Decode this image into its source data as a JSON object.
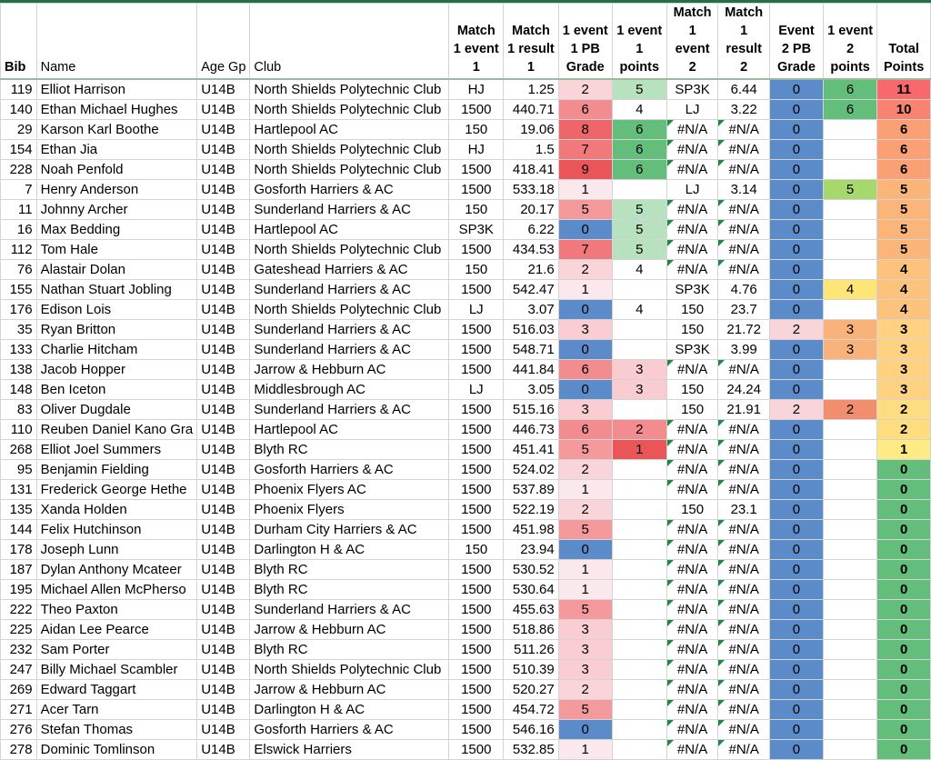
{
  "columns": [
    {
      "key": "bib",
      "label": "Bib"
    },
    {
      "key": "name",
      "label": "Name"
    },
    {
      "key": "age",
      "label": "Age Gp"
    },
    {
      "key": "club",
      "label": "Club"
    },
    {
      "key": "m1e",
      "label": "Match 1 event 1"
    },
    {
      "key": "m1r",
      "label": "Match 1 result 1"
    },
    {
      "key": "pb1",
      "label": "1 event 1 PB Grade"
    },
    {
      "key": "pts1",
      "label": "1 event 1 points"
    },
    {
      "key": "m2e",
      "label": "Match 1 event 2"
    },
    {
      "key": "m2r",
      "label": "Match 1 result 2"
    },
    {
      "key": "pb2",
      "label": "Event 2 PB Grade"
    },
    {
      "key": "pts2",
      "label": "1 event 2 points"
    },
    {
      "key": "total",
      "label": "Total Points"
    }
  ],
  "rows": [
    {
      "bib": "119",
      "name": "Elliot Harrison",
      "age": "U14B",
      "club": "North Shields Polytechnic Club",
      "m1e": "HJ",
      "m1r": "1.25",
      "pb1": "2",
      "pts1": "5",
      "m2e": "SP3K",
      "m2r": "6.44",
      "pb2": "0",
      "pts2": "6",
      "total": "11"
    },
    {
      "bib": "140",
      "name": "Ethan Michael Hughes",
      "age": "U14B",
      "club": "North Shields Polytechnic Club",
      "m1e": "1500",
      "m1r": "440.71",
      "pb1": "6",
      "pts1": "4",
      "m2e": "LJ",
      "m2r": "3.22",
      "pb2": "0",
      "pts2": "6",
      "total": "10"
    },
    {
      "bib": "29",
      "name": "Karson Karl Boothe",
      "age": "U14B",
      "club": "Hartlepool AC",
      "m1e": "150",
      "m1r": "19.06",
      "pb1": "8",
      "pts1": "6",
      "m2e": "#N/A",
      "m2r": "#N/A",
      "pb2": "0",
      "pts2": "",
      "total": "6"
    },
    {
      "bib": "154",
      "name": "Ethan Jia",
      "age": "U14B",
      "club": "North Shields Polytechnic Club",
      "m1e": "HJ",
      "m1r": "1.5",
      "pb1": "7",
      "pts1": "6",
      "m2e": "#N/A",
      "m2r": "#N/A",
      "pb2": "0",
      "pts2": "",
      "total": "6"
    },
    {
      "bib": "228",
      "name": "Noah Penfold",
      "age": "U14B",
      "club": "North Shields Polytechnic Club",
      "m1e": "1500",
      "m1r": "418.41",
      "pb1": "9",
      "pts1": "6",
      "m2e": "#N/A",
      "m2r": "#N/A",
      "pb2": "0",
      "pts2": "",
      "total": "6"
    },
    {
      "bib": "7",
      "name": "Henry Anderson",
      "age": "U14B",
      "club": "Gosforth Harriers & AC",
      "m1e": "1500",
      "m1r": "533.18",
      "pb1": "1",
      "pts1": "",
      "m2e": "LJ",
      "m2r": "3.14",
      "pb2": "0",
      "pts2": "5",
      "total": "5"
    },
    {
      "bib": "11",
      "name": "Johnny Archer",
      "age": "U14B",
      "club": "Sunderland Harriers & AC",
      "m1e": "150",
      "m1r": "20.17",
      "pb1": "5",
      "pts1": "5",
      "m2e": "#N/A",
      "m2r": "#N/A",
      "pb2": "0",
      "pts2": "",
      "total": "5"
    },
    {
      "bib": "16",
      "name": "Max Bedding",
      "age": "U14B",
      "club": "Hartlepool AC",
      "m1e": "SP3K",
      "m1r": "6.22",
      "pb1": "0",
      "pts1": "5",
      "m2e": "#N/A",
      "m2r": "#N/A",
      "pb2": "0",
      "pts2": "",
      "total": "5"
    },
    {
      "bib": "112",
      "name": "Tom Hale",
      "age": "U14B",
      "club": "North Shields Polytechnic Club",
      "m1e": "1500",
      "m1r": "434.53",
      "pb1": "7",
      "pts1": "5",
      "m2e": "#N/A",
      "m2r": "#N/A",
      "pb2": "0",
      "pts2": "",
      "total": "5"
    },
    {
      "bib": "76",
      "name": "Alastair Dolan",
      "age": "U14B",
      "club": "Gateshead Harriers & AC",
      "m1e": "150",
      "m1r": "21.6",
      "pb1": "2",
      "pts1": "4",
      "m2e": "#N/A",
      "m2r": "#N/A",
      "pb2": "0",
      "pts2": "",
      "total": "4"
    },
    {
      "bib": "155",
      "name": "Nathan Stuart Jobling",
      "age": "U14B",
      "club": "Sunderland Harriers & AC",
      "m1e": "1500",
      "m1r": "542.47",
      "pb1": "1",
      "pts1": "",
      "m2e": "SP3K",
      "m2r": "4.76",
      "pb2": "0",
      "pts2": "4",
      "total": "4"
    },
    {
      "bib": "176",
      "name": "Edison Lois",
      "age": "U14B",
      "club": "North Shields Polytechnic Club",
      "m1e": "LJ",
      "m1r": "3.07",
      "pb1": "0",
      "pts1": "4",
      "m2e": "150",
      "m2r": "23.7",
      "pb2": "0",
      "pts2": "",
      "total": "4"
    },
    {
      "bib": "35",
      "name": "Ryan Britton",
      "age": "U14B",
      "club": "Sunderland Harriers & AC",
      "m1e": "1500",
      "m1r": "516.03",
      "pb1": "3",
      "pts1": "",
      "m2e": "150",
      "m2r": "21.72",
      "pb2": "2",
      "pts2": "3",
      "total": "3"
    },
    {
      "bib": "133",
      "name": "Charlie Hitcham",
      "age": "U14B",
      "club": "Sunderland Harriers & AC",
      "m1e": "1500",
      "m1r": "548.71",
      "pb1": "0",
      "pts1": "",
      "m2e": "SP3K",
      "m2r": "3.99",
      "pb2": "0",
      "pts2": "3",
      "total": "3"
    },
    {
      "bib": "138",
      "name": "Jacob Hopper",
      "age": "U14B",
      "club": "Jarrow & Hebburn AC",
      "m1e": "1500",
      "m1r": "441.84",
      "pb1": "6",
      "pts1": "3",
      "m2e": "#N/A",
      "m2r": "#N/A",
      "pb2": "0",
      "pts2": "",
      "total": "3"
    },
    {
      "bib": "148",
      "name": "Ben Iceton",
      "age": "U14B",
      "club": "Middlesbrough AC",
      "m1e": "LJ",
      "m1r": "3.05",
      "pb1": "0",
      "pts1": "3",
      "m2e": "150",
      "m2r": "24.24",
      "pb2": "0",
      "pts2": "",
      "total": "3"
    },
    {
      "bib": "83",
      "name": "Oliver Dugdale",
      "age": "U14B",
      "club": "Sunderland Harriers & AC",
      "m1e": "1500",
      "m1r": "515.16",
      "pb1": "3",
      "pts1": "",
      "m2e": "150",
      "m2r": "21.91",
      "pb2": "2",
      "pts2": "2",
      "total": "2"
    },
    {
      "bib": "110",
      "name": "Reuben Daniel Kano Gra",
      "age": "U14B",
      "club": "Hartlepool AC",
      "m1e": "1500",
      "m1r": "446.73",
      "pb1": "6",
      "pts1": "2",
      "m2e": "#N/A",
      "m2r": "#N/A",
      "pb2": "0",
      "pts2": "",
      "total": "2"
    },
    {
      "bib": "268",
      "name": "Elliot Joel Summers",
      "age": "U14B",
      "club": "Blyth RC",
      "m1e": "1500",
      "m1r": "451.41",
      "pb1": "5",
      "pts1": "1",
      "m2e": "#N/A",
      "m2r": "#N/A",
      "pb2": "0",
      "pts2": "",
      "total": "1"
    },
    {
      "bib": "95",
      "name": "Benjamin Fielding",
      "age": "U14B",
      "club": "Gosforth Harriers & AC",
      "m1e": "1500",
      "m1r": "524.02",
      "pb1": "2",
      "pts1": "",
      "m2e": "#N/A",
      "m2r": "#N/A",
      "pb2": "0",
      "pts2": "",
      "total": "0"
    },
    {
      "bib": "131",
      "name": "Frederick George Hethe",
      "age": "U14B",
      "club": "Phoenix Flyers AC",
      "m1e": "1500",
      "m1r": "537.89",
      "pb1": "1",
      "pts1": "",
      "m2e": "#N/A",
      "m2r": "#N/A",
      "pb2": "0",
      "pts2": "",
      "total": "0"
    },
    {
      "bib": "135",
      "name": "Xanda Holden",
      "age": "U14B",
      "club": "Phoenix Flyers",
      "m1e": "1500",
      "m1r": "522.19",
      "pb1": "2",
      "pts1": "",
      "m2e": "150",
      "m2r": "23.1",
      "pb2": "0",
      "pts2": "",
      "total": "0"
    },
    {
      "bib": "144",
      "name": "Felix Hutchinson",
      "age": "U14B",
      "club": "Durham City Harriers & AC",
      "m1e": "1500",
      "m1r": "451.98",
      "pb1": "5",
      "pts1": "",
      "m2e": "#N/A",
      "m2r": "#N/A",
      "pb2": "0",
      "pts2": "",
      "total": "0"
    },
    {
      "bib": "178",
      "name": "Joseph Lunn",
      "age": "U14B",
      "club": "Darlington H & AC",
      "m1e": "150",
      "m1r": "23.94",
      "pb1": "0",
      "pts1": "",
      "m2e": "#N/A",
      "m2r": "#N/A",
      "pb2": "0",
      "pts2": "",
      "total": "0"
    },
    {
      "bib": "187",
      "name": "Dylan Anthony Mcateer",
      "age": "U14B",
      "club": "Blyth RC",
      "m1e": "1500",
      "m1r": "530.52",
      "pb1": "1",
      "pts1": "",
      "m2e": "#N/A",
      "m2r": "#N/A",
      "pb2": "0",
      "pts2": "",
      "total": "0"
    },
    {
      "bib": "195",
      "name": "Michael Allen McPherso",
      "age": "U14B",
      "club": "Blyth RC",
      "m1e": "1500",
      "m1r": "530.64",
      "pb1": "1",
      "pts1": "",
      "m2e": "#N/A",
      "m2r": "#N/A",
      "pb2": "0",
      "pts2": "",
      "total": "0"
    },
    {
      "bib": "222",
      "name": "Theo Paxton",
      "age": "U14B",
      "club": "Sunderland Harriers & AC",
      "m1e": "1500",
      "m1r": "455.63",
      "pb1": "5",
      "pts1": "",
      "m2e": "#N/A",
      "m2r": "#N/A",
      "pb2": "0",
      "pts2": "",
      "total": "0"
    },
    {
      "bib": "225",
      "name": "Aidan Lee Pearce",
      "age": "U14B",
      "club": "Jarrow & Hebburn AC",
      "m1e": "1500",
      "m1r": "518.86",
      "pb1": "3",
      "pts1": "",
      "m2e": "#N/A",
      "m2r": "#N/A",
      "pb2": "0",
      "pts2": "",
      "total": "0"
    },
    {
      "bib": "232",
      "name": "Sam Porter",
      "age": "U14B",
      "club": "Blyth RC",
      "m1e": "1500",
      "m1r": "511.26",
      "pb1": "3",
      "pts1": "",
      "m2e": "#N/A",
      "m2r": "#N/A",
      "pb2": "0",
      "pts2": "",
      "total": "0"
    },
    {
      "bib": "247",
      "name": "Billy Michael Scambler",
      "age": "U14B",
      "club": "North Shields Polytechnic Club",
      "m1e": "1500",
      "m1r": "510.39",
      "pb1": "3",
      "pts1": "",
      "m2e": "#N/A",
      "m2r": "#N/A",
      "pb2": "0",
      "pts2": "",
      "total": "0"
    },
    {
      "bib": "269",
      "name": "Edward Taggart",
      "age": "U14B",
      "club": "Jarrow & Hebburn AC",
      "m1e": "1500",
      "m1r": "520.27",
      "pb1": "2",
      "pts1": "",
      "m2e": "#N/A",
      "m2r": "#N/A",
      "pb2": "0",
      "pts2": "",
      "total": "0"
    },
    {
      "bib": "271",
      "name": "Acer Tarn",
      "age": "U14B",
      "club": "Darlington H & AC",
      "m1e": "1500",
      "m1r": "454.72",
      "pb1": "5",
      "pts1": "",
      "m2e": "#N/A",
      "m2r": "#N/A",
      "pb2": "0",
      "pts2": "",
      "total": "0"
    },
    {
      "bib": "276",
      "name": "Stefan Thomas",
      "age": "U14B",
      "club": "Gosforth Harriers & AC",
      "m1e": "1500",
      "m1r": "546.16",
      "pb1": "0",
      "pts1": "",
      "m2e": "#N/A",
      "m2r": "#N/A",
      "pb2": "0",
      "pts2": "",
      "total": "0"
    },
    {
      "bib": "278",
      "name": "Dominic Tomlinson",
      "age": "U14B",
      "club": "Elswick Harriers",
      "m1e": "1500",
      "m1r": "532.85",
      "pb1": "1",
      "pts1": "",
      "m2e": "#N/A",
      "m2r": "#N/A",
      "pb2": "0",
      "pts2": "",
      "total": "0"
    }
  ],
  "colors": {
    "grade_0": "#5b8bc9",
    "grade_1": "#fbe8ec",
    "grade_2": "#f9d4d8",
    "grade_3": "#f9cdd1",
    "grade_5": "#f49a9d",
    "grade_6": "#f28c8f",
    "grade_7": "#f1797c",
    "grade_8": "#ee6669",
    "grade_9": "#ea5558",
    "points_6": "#63be7b",
    "points_5": "#b7e1bf",
    "points_5_event2": "#a6d86e",
    "points_4_event2": "#fde578",
    "points_3_event2": "#f9b37a",
    "points_2_event2": "#f28e6e",
    "points_3": "#f8ccd0",
    "points_2": "#f28c8f",
    "points_1": "#ea5558",
    "total_11": "#f8696b",
    "total_10": "#f98370",
    "total_6": "#fba075",
    "total_5": "#fcb579",
    "total_4": "#fdc27c",
    "total_3": "#fed280",
    "total_2": "#fedd81",
    "total_1": "#ffeb84",
    "total_0": "#63be7b",
    "na_marker": "#1f8a3c",
    "header_rule": "#217346"
  }
}
